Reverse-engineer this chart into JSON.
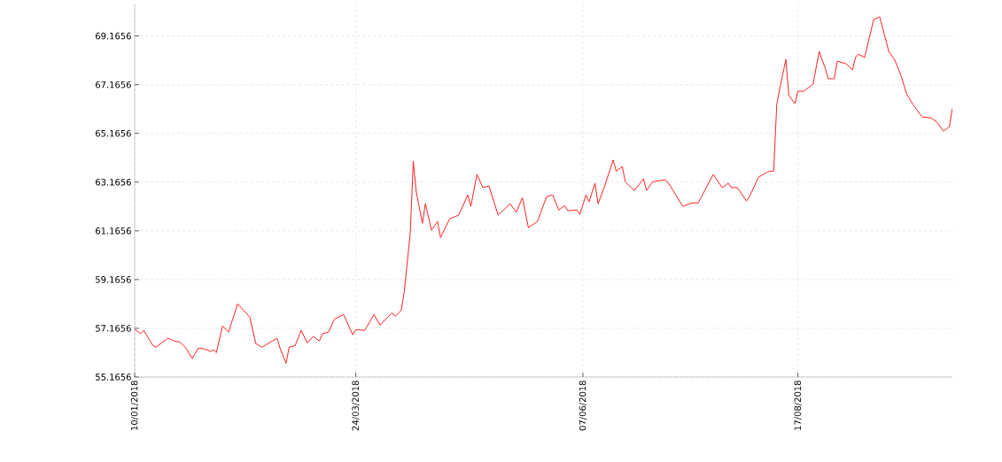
{
  "chart_data": {
    "type": "line",
    "x": [
      "2018-01-10",
      "2018-01-12",
      "2018-01-13",
      "2018-01-16",
      "2018-01-17",
      "2018-01-21",
      "2018-01-23",
      "2018-01-25",
      "2018-01-27",
      "2018-01-29",
      "2018-01-31",
      "2018-02-02",
      "2018-02-04",
      "2018-02-05",
      "2018-02-06",
      "2018-02-08",
      "2018-02-10",
      "2018-02-13",
      "2018-02-17",
      "2018-02-19",
      "2018-02-21",
      "2018-02-26",
      "2018-02-27",
      "2018-03-01",
      "2018-03-02",
      "2018-03-04",
      "2018-03-06",
      "2018-03-08",
      "2018-03-10",
      "2018-03-12",
      "2018-03-13",
      "2018-03-15",
      "2018-03-17",
      "2018-03-20",
      "2018-03-23",
      "2018-03-24",
      "2018-03-27",
      "2018-03-30",
      "2018-04-01",
      "2018-04-05",
      "2018-04-06",
      "2018-04-08",
      "2018-04-09",
      "2018-04-11",
      "2018-04-12",
      "2018-04-13",
      "2018-04-15",
      "2018-04-16",
      "2018-04-18",
      "2018-04-20",
      "2018-04-21",
      "2018-04-24",
      "2018-04-27",
      "2018-04-30",
      "2018-05-01",
      "2018-05-03",
      "2018-05-05",
      "2018-05-07",
      "2018-05-10",
      "2018-05-14",
      "2018-05-16",
      "2018-05-18",
      "2018-05-20",
      "2018-05-23",
      "2018-05-26",
      "2018-05-28",
      "2018-05-30",
      "2018-06-01",
      "2018-06-02",
      "2018-06-05",
      "2018-06-06",
      "2018-06-08",
      "2018-06-09",
      "2018-06-11",
      "2018-06-12",
      "2018-06-14",
      "2018-06-17",
      "2018-06-18",
      "2018-06-20",
      "2018-06-21",
      "2018-06-24",
      "2018-06-27",
      "2018-06-28",
      "2018-06-30",
      "2018-07-04",
      "2018-07-05",
      "2018-07-10",
      "2018-07-13",
      "2018-07-15",
      "2018-07-16",
      "2018-07-20",
      "2018-07-23",
      "2018-07-25",
      "2018-07-26",
      "2018-07-28",
      "2018-07-31",
      "2018-08-01",
      "2018-08-04",
      "2018-08-07",
      "2018-08-09",
      "2018-08-10",
      "2018-08-11",
      "2018-08-13",
      "2018-08-14",
      "2018-08-16",
      "2018-08-17",
      "2018-08-19",
      "2018-08-22",
      "2018-08-24",
      "2018-08-26",
      "2018-08-27",
      "2018-08-29",
      "2018-08-30",
      "2018-09-02",
      "2018-09-04",
      "2018-09-05",
      "2018-09-06",
      "2018-09-08",
      "2018-09-11",
      "2018-09-13",
      "2018-09-14",
      "2018-09-16",
      "2018-09-18",
      "2018-09-20",
      "2018-09-22",
      "2018-09-24",
      "2018-09-27",
      "2018-09-30",
      "2018-10-02",
      "2018-10-04",
      "2018-10-06",
      "2018-10-07"
    ],
    "series": [
      {
        "color": "#ff2020",
        "values": [
          57.13,
          56.95,
          57.08,
          56.46,
          56.39,
          56.76,
          56.65,
          56.59,
          56.35,
          55.92,
          56.35,
          56.32,
          56.22,
          56.28,
          56.17,
          57.26,
          57.01,
          58.17,
          57.63,
          56.54,
          56.39,
          56.76,
          56.35,
          55.73,
          56.39,
          56.46,
          57.08,
          56.57,
          56.83,
          56.65,
          56.94,
          57.01,
          57.55,
          57.73,
          56.9,
          57.11,
          57.08,
          57.73,
          57.3,
          57.8,
          57.66,
          57.9,
          58.64,
          61.08,
          64.03,
          62.75,
          61.48,
          62.28,
          61.19,
          61.55,
          60.89,
          61.66,
          61.81,
          62.64,
          62.17,
          63.48,
          62.94,
          63.01,
          61.81,
          62.28,
          61.92,
          62.53,
          61.3,
          61.55,
          62.57,
          62.64,
          62.02,
          62.2,
          61.99,
          62.02,
          61.84,
          62.64,
          62.35,
          63.12,
          62.28,
          62.94,
          64.07,
          63.62,
          63.8,
          63.18,
          62.82,
          63.3,
          62.82,
          63.18,
          63.26,
          63.18,
          62.17,
          62.31,
          62.31,
          62.53,
          63.48,
          62.94,
          63.12,
          62.94,
          62.94,
          62.39,
          62.57,
          63.37,
          63.59,
          63.62,
          66.35,
          67.0,
          68.2,
          66.72,
          66.39,
          66.9,
          66.9,
          67.19,
          68.53,
          67.84,
          67.41,
          67.41,
          68.13,
          68.02,
          67.77,
          68.28,
          68.42,
          68.28,
          69.84,
          69.95,
          69.48,
          68.53,
          68.17,
          67.55,
          66.75,
          66.35,
          65.84,
          65.8,
          65.62,
          65.26,
          65.44,
          66.2
        ]
      }
    ],
    "xlim": [
      "2018-01-10",
      "2018-10-07"
    ],
    "ylim": [
      55.1656,
      70.46
    ],
    "xticks": [
      {
        "value": "2018-01-10",
        "label": "10/01/2018"
      },
      {
        "value": "2018-03-24",
        "label": "24/03/2018"
      },
      {
        "value": "2018-06-07",
        "label": "07/06/2018"
      },
      {
        "value": "2018-08-17",
        "label": "17/08/2018"
      }
    ],
    "yticks": [
      55.1656,
      57.1656,
      59.1656,
      61.1656,
      63.1656,
      65.1656,
      67.1656,
      69.1656
    ],
    "grid": true,
    "marker": "none",
    "line_style": "solid"
  }
}
